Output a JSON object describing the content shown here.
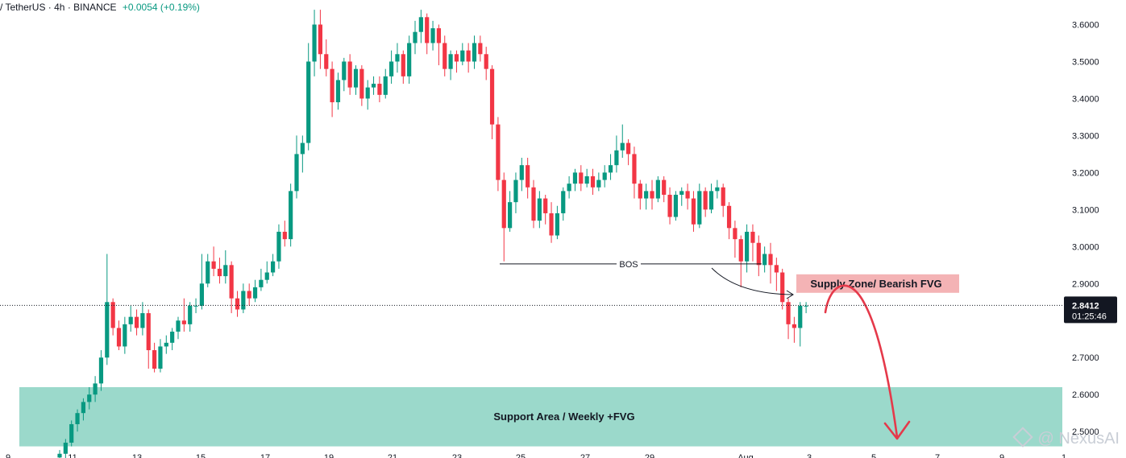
{
  "header": {
    "symbol": "/ TetherUS · 4h · BINANCE",
    "change": "+0.0054 (+0.19%)"
  },
  "watermark": "@ NexusAI",
  "colors": {
    "up": "#089981",
    "down": "#f23645",
    "support_fill": "#9bd9cb",
    "supply_fill": "#f4b3b5",
    "arrow": "#e5394a"
  },
  "chart_data": {
    "type": "candlestick",
    "ylim": [
      2.45,
      3.67
    ],
    "y_ticks": [
      "3.6000",
      "3.5000",
      "3.4000",
      "3.3000",
      "3.2000",
      "3.1000",
      "3.0000",
      "2.9000",
      "2.7000",
      "2.6000",
      "2.5000"
    ],
    "x_ticks": [
      "9",
      "11",
      "13",
      "15",
      "17",
      "19",
      "21",
      "23",
      "25",
      "27",
      "29",
      "Aug",
      "3",
      "5",
      "7",
      "9",
      "1"
    ],
    "last_price": {
      "value": "2.8412",
      "countdown": "01:25:46",
      "price": 2.8412
    },
    "zones": [
      {
        "label": "Support Area / Weekly +FVG",
        "top": 2.62,
        "bottom": 2.46,
        "color": "support"
      },
      {
        "label": "Supply Zone/ Bearish FVG",
        "top": 2.925,
        "bottom": 2.875,
        "color": "supply"
      }
    ],
    "annotations": [
      {
        "label": "BOS",
        "price": 2.953
      }
    ],
    "candles": [
      [
        2.43,
        2.44,
        2.42,
        2.45
      ],
      [
        2.44,
        2.47,
        2.42,
        2.48
      ],
      [
        2.47,
        2.52,
        2.46,
        2.53
      ],
      [
        2.52,
        2.55,
        2.5,
        2.56
      ],
      [
        2.55,
        2.58,
        2.53,
        2.59
      ],
      [
        2.58,
        2.6,
        2.56,
        2.62
      ],
      [
        2.6,
        2.63,
        2.58,
        2.65
      ],
      [
        2.63,
        2.7,
        2.61,
        2.72
      ],
      [
        2.7,
        2.85,
        2.68,
        2.98
      ],
      [
        2.85,
        2.78,
        2.76,
        2.86
      ],
      [
        2.78,
        2.73,
        2.72,
        2.8
      ],
      [
        2.73,
        2.79,
        2.71,
        2.81
      ],
      [
        2.79,
        2.81,
        2.77,
        2.84
      ],
      [
        2.81,
        2.78,
        2.76,
        2.83
      ],
      [
        2.78,
        2.82,
        2.76,
        2.85
      ],
      [
        2.82,
        2.72,
        2.67,
        2.83
      ],
      [
        2.72,
        2.67,
        2.66,
        2.74
      ],
      [
        2.67,
        2.73,
        2.66,
        2.75
      ],
      [
        2.73,
        2.74,
        2.71,
        2.76
      ],
      [
        2.74,
        2.77,
        2.72,
        2.78
      ],
      [
        2.77,
        2.8,
        2.75,
        2.81
      ],
      [
        2.8,
        2.79,
        2.77,
        2.86
      ],
      [
        2.79,
        2.84,
        2.77,
        2.85
      ],
      [
        2.84,
        2.84,
        2.82,
        2.86
      ],
      [
        2.84,
        2.9,
        2.83,
        2.98
      ],
      [
        2.9,
        2.96,
        2.89,
        2.98
      ],
      [
        2.96,
        2.94,
        2.92,
        3.0
      ],
      [
        2.94,
        2.92,
        2.9,
        2.97
      ],
      [
        2.92,
        2.95,
        2.9,
        2.99
      ],
      [
        2.95,
        2.86,
        2.82,
        2.96
      ],
      [
        2.86,
        2.83,
        2.81,
        2.88
      ],
      [
        2.83,
        2.88,
        2.82,
        2.9
      ],
      [
        2.88,
        2.86,
        2.84,
        2.9
      ],
      [
        2.86,
        2.89,
        2.85,
        2.91
      ],
      [
        2.89,
        2.91,
        2.88,
        2.94
      ],
      [
        2.91,
        2.93,
        2.9,
        2.96
      ],
      [
        2.93,
        2.96,
        2.92,
        2.98
      ],
      [
        2.96,
        3.04,
        2.94,
        3.06
      ],
      [
        3.04,
        3.02,
        3.0,
        3.07
      ],
      [
        3.02,
        3.15,
        3.0,
        3.17
      ],
      [
        3.15,
        3.25,
        3.13,
        3.3
      ],
      [
        3.25,
        3.28,
        3.2,
        3.3
      ],
      [
        3.28,
        3.5,
        3.26,
        3.55
      ],
      [
        3.5,
        3.6,
        3.46,
        3.64
      ],
      [
        3.6,
        3.52,
        3.48,
        3.64
      ],
      [
        3.52,
        3.48,
        3.46,
        3.56
      ],
      [
        3.48,
        3.39,
        3.35,
        3.5
      ],
      [
        3.39,
        3.45,
        3.37,
        3.47
      ],
      [
        3.45,
        3.5,
        3.42,
        3.51
      ],
      [
        3.5,
        3.43,
        3.41,
        3.52
      ],
      [
        3.43,
        3.48,
        3.41,
        3.49
      ],
      [
        3.48,
        3.4,
        3.38,
        3.49
      ],
      [
        3.4,
        3.43,
        3.37,
        3.45
      ],
      [
        3.43,
        3.44,
        3.41,
        3.46
      ],
      [
        3.44,
        3.41,
        3.39,
        3.46
      ],
      [
        3.41,
        3.46,
        3.4,
        3.48
      ],
      [
        3.46,
        3.5,
        3.44,
        3.53
      ],
      [
        3.5,
        3.52,
        3.47,
        3.55
      ],
      [
        3.52,
        3.46,
        3.44,
        3.53
      ],
      [
        3.46,
        3.55,
        3.44,
        3.57
      ],
      [
        3.55,
        3.58,
        3.52,
        3.61
      ],
      [
        3.58,
        3.62,
        3.55,
        3.64
      ],
      [
        3.62,
        3.55,
        3.52,
        3.63
      ],
      [
        3.55,
        3.59,
        3.53,
        3.61
      ],
      [
        3.59,
        3.55,
        3.49,
        3.6
      ],
      [
        3.55,
        3.48,
        3.46,
        3.57
      ],
      [
        3.48,
        3.52,
        3.45,
        3.53
      ],
      [
        3.52,
        3.5,
        3.47,
        3.53
      ],
      [
        3.5,
        3.53,
        3.49,
        3.55
      ],
      [
        3.53,
        3.5,
        3.47,
        3.55
      ],
      [
        3.5,
        3.55,
        3.48,
        3.57
      ],
      [
        3.55,
        3.52,
        3.5,
        3.57
      ],
      [
        3.52,
        3.48,
        3.45,
        3.54
      ],
      [
        3.48,
        3.33,
        3.29,
        3.49
      ],
      [
        3.33,
        3.18,
        3.15,
        3.35
      ],
      [
        3.18,
        3.05,
        2.96,
        3.2
      ],
      [
        3.05,
        3.12,
        3.04,
        3.15
      ],
      [
        3.12,
        3.18,
        3.09,
        3.2
      ],
      [
        3.18,
        3.22,
        3.15,
        3.24
      ],
      [
        3.22,
        3.16,
        3.13,
        3.24
      ],
      [
        3.16,
        3.07,
        3.05,
        3.18
      ],
      [
        3.07,
        3.13,
        3.05,
        3.15
      ],
      [
        3.13,
        3.09,
        3.06,
        3.14
      ],
      [
        3.09,
        3.03,
        3.01,
        3.12
      ],
      [
        3.03,
        3.09,
        3.02,
        3.11
      ],
      [
        3.09,
        3.15,
        3.07,
        3.16
      ],
      [
        3.15,
        3.17,
        3.13,
        3.19
      ],
      [
        3.17,
        3.2,
        3.15,
        3.21
      ],
      [
        3.2,
        3.17,
        3.15,
        3.22
      ],
      [
        3.17,
        3.19,
        3.16,
        3.21
      ],
      [
        3.19,
        3.16,
        3.14,
        3.21
      ],
      [
        3.16,
        3.18,
        3.15,
        3.2
      ],
      [
        3.18,
        3.2,
        3.16,
        3.22
      ],
      [
        3.2,
        3.22,
        3.18,
        3.25
      ],
      [
        3.22,
        3.26,
        3.2,
        3.3
      ],
      [
        3.26,
        3.28,
        3.24,
        3.33
      ],
      [
        3.28,
        3.25,
        3.22,
        3.29
      ],
      [
        3.25,
        3.17,
        3.13,
        3.27
      ],
      [
        3.17,
        3.13,
        3.1,
        3.18
      ],
      [
        3.13,
        3.15,
        3.1,
        3.17
      ],
      [
        3.15,
        3.13,
        3.1,
        3.18
      ],
      [
        3.13,
        3.18,
        3.12,
        3.19
      ],
      [
        3.18,
        3.14,
        3.12,
        3.19
      ],
      [
        3.14,
        3.08,
        3.06,
        3.16
      ],
      [
        3.08,
        3.14,
        3.07,
        3.15
      ],
      [
        3.14,
        3.15,
        3.11,
        3.16
      ],
      [
        3.15,
        3.13,
        3.1,
        3.17
      ],
      [
        3.13,
        3.06,
        3.04,
        3.15
      ],
      [
        3.06,
        3.15,
        3.05,
        3.17
      ],
      [
        3.15,
        3.1,
        3.08,
        3.16
      ],
      [
        3.1,
        3.15,
        3.09,
        3.17
      ],
      [
        3.15,
        3.16,
        3.13,
        3.18
      ],
      [
        3.16,
        3.11,
        3.08,
        3.17
      ],
      [
        3.11,
        3.05,
        3.02,
        3.12
      ],
      [
        3.05,
        3.02,
        2.97,
        3.07
      ],
      [
        3.02,
        2.96,
        2.89,
        3.03
      ],
      [
        2.96,
        3.04,
        2.93,
        3.06
      ],
      [
        3.04,
        3.01,
        2.96,
        3.06
      ],
      [
        3.01,
        2.95,
        2.92,
        3.03
      ],
      [
        2.95,
        2.98,
        2.93,
        3.0
      ],
      [
        2.98,
        2.95,
        2.9,
        3.01
      ],
      [
        2.95,
        2.93,
        2.88,
        2.97
      ],
      [
        2.93,
        2.85,
        2.83,
        2.94
      ],
      [
        2.85,
        2.79,
        2.75,
        2.86
      ],
      [
        2.79,
        2.78,
        2.74,
        2.81
      ],
      [
        2.78,
        2.84,
        2.73,
        2.85
      ],
      [
        2.84,
        2.84,
        2.82,
        2.85
      ]
    ]
  }
}
